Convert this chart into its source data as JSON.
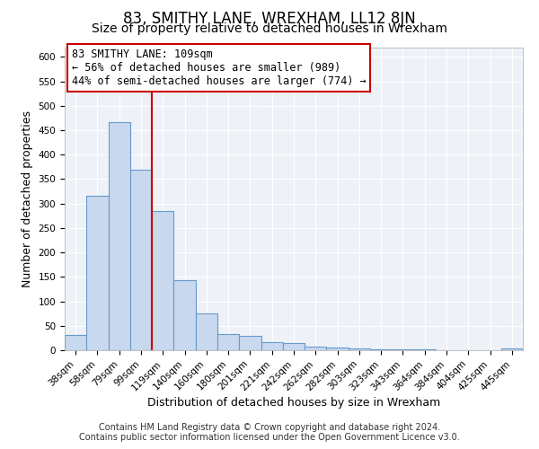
{
  "title": "83, SMITHY LANE, WREXHAM, LL12 8JN",
  "subtitle": "Size of property relative to detached houses in Wrexham",
  "xlabel": "Distribution of detached houses by size in Wrexham",
  "ylabel": "Number of detached properties",
  "bar_labels": [
    "38sqm",
    "58sqm",
    "79sqm",
    "99sqm",
    "119sqm",
    "140sqm",
    "160sqm",
    "180sqm",
    "201sqm",
    "221sqm",
    "242sqm",
    "262sqm",
    "282sqm",
    "303sqm",
    "323sqm",
    "343sqm",
    "364sqm",
    "384sqm",
    "404sqm",
    "425sqm",
    "445sqm"
  ],
  "bar_values": [
    32,
    316,
    466,
    369,
    284,
    144,
    76,
    33,
    30,
    16,
    14,
    7,
    6,
    4,
    2,
    1,
    1,
    0,
    0,
    0,
    3
  ],
  "bar_color": "#c8d8ee",
  "bar_edge_color": "#6699cc",
  "vline_x": 3.5,
  "vline_color": "#cc0000",
  "annotation_title": "83 SMITHY LANE: 109sqm",
  "annotation_line2": "← 56% of detached houses are smaller (989)",
  "annotation_line3": "44% of semi-detached houses are larger (774) →",
  "annotation_box_color": "#ffffff",
  "annotation_box_edge_color": "#cc0000",
  "ylim": [
    0,
    620
  ],
  "yticks": [
    0,
    50,
    100,
    150,
    200,
    250,
    300,
    350,
    400,
    450,
    500,
    550,
    600
  ],
  "footer1": "Contains HM Land Registry data © Crown copyright and database right 2024.",
  "footer2": "Contains public sector information licensed under the Open Government Licence v3.0.",
  "bg_color": "#ffffff",
  "plot_bg_color": "#eef2f8",
  "grid_color": "#ffffff",
  "title_fontsize": 12,
  "subtitle_fontsize": 10,
  "label_fontsize": 9,
  "tick_fontsize": 7.5,
  "annotation_fontsize": 8.5,
  "footer_fontsize": 7
}
